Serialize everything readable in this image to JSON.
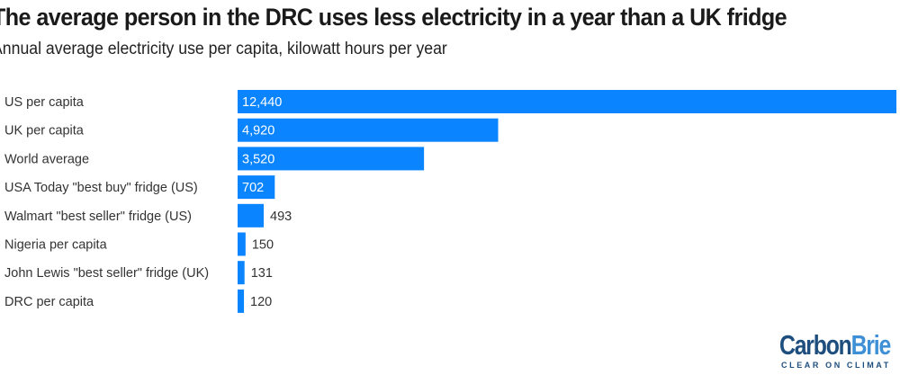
{
  "chart_data": {
    "type": "bar",
    "orientation": "horizontal",
    "title": "The average person in the DRC uses less electricity in a year than a UK fridge",
    "subtitle": "Annual average electricity use per capita, kilowatt hours per year",
    "categories": [
      "US per capita",
      "UK per capita",
      "World average",
      "USA Today \"best buy\" fridge (US)",
      "Walmart \"best seller\" fridge (US)",
      "Nigeria per capita",
      "John Lewis \"best seller\" fridge (UK)",
      "DRC per capita"
    ],
    "values": [
      12440,
      4920,
      3520,
      702,
      493,
      150,
      131,
      120
    ],
    "data_labels": [
      "12,440",
      "4,920",
      "3,520",
      "702",
      "493",
      "150",
      "131",
      "120"
    ],
    "xlim": [
      0,
      12440
    ],
    "grid": false,
    "bar_color": "#0a84ff"
  },
  "logo": {
    "text_dark": "Carbon",
    "text_light": "Brie",
    "tagline": "CLEAR ON CLIMAT"
  }
}
